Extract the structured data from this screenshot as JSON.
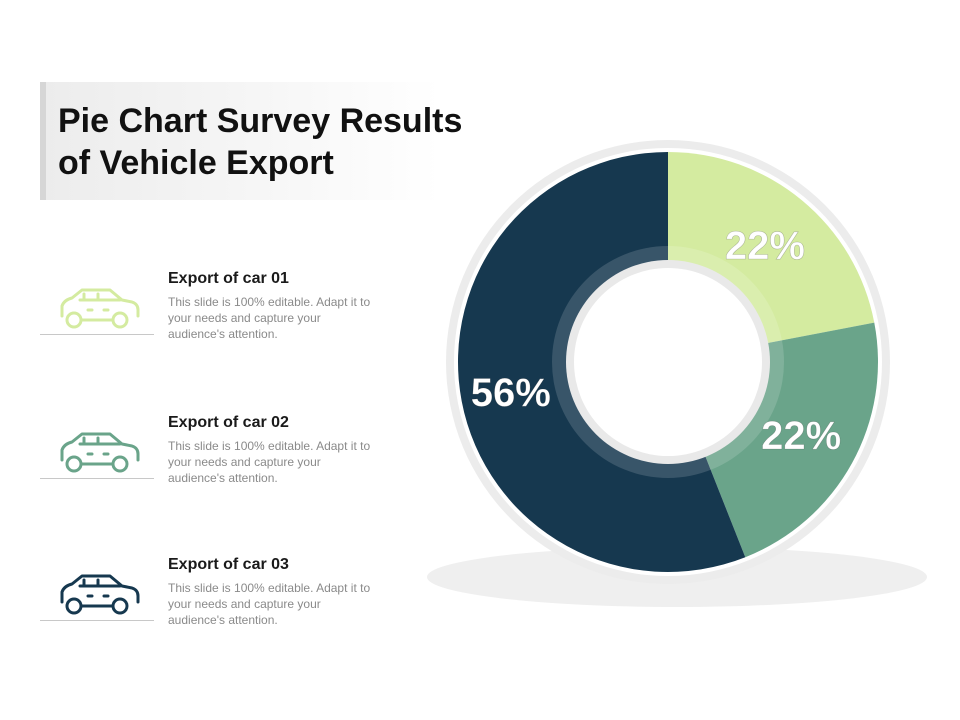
{
  "title": "Pie Chart Survey Results\nof Vehicle Export",
  "items": [
    {
      "title": "Export of car 01",
      "desc": "This slide is 100% editable. Adapt it to your needs and capture your audience's attention.",
      "icon": "car-icon",
      "color": "#d4eba0"
    },
    {
      "title": "Export of car 02",
      "desc": "This slide is 100% editable. Adapt it to your needs and capture your audience's attention.",
      "icon": "car-icon",
      "color": "#6aa48a"
    },
    {
      "title": "Export of car 03",
      "desc": "This slide is 100% editable. Adapt it to your needs and capture your audience's attention.",
      "icon": "car-icon",
      "color": "#16384f"
    }
  ],
  "chart_data": {
    "type": "pie",
    "title": "",
    "categories": [
      "Export of car 01",
      "Export of car 02",
      "Export of car 03"
    ],
    "values": [
      22,
      22,
      56
    ],
    "labels": [
      "22%",
      "22%",
      "56%"
    ],
    "colors": [
      "#d4eba0",
      "#6aa48a",
      "#16384f"
    ]
  }
}
